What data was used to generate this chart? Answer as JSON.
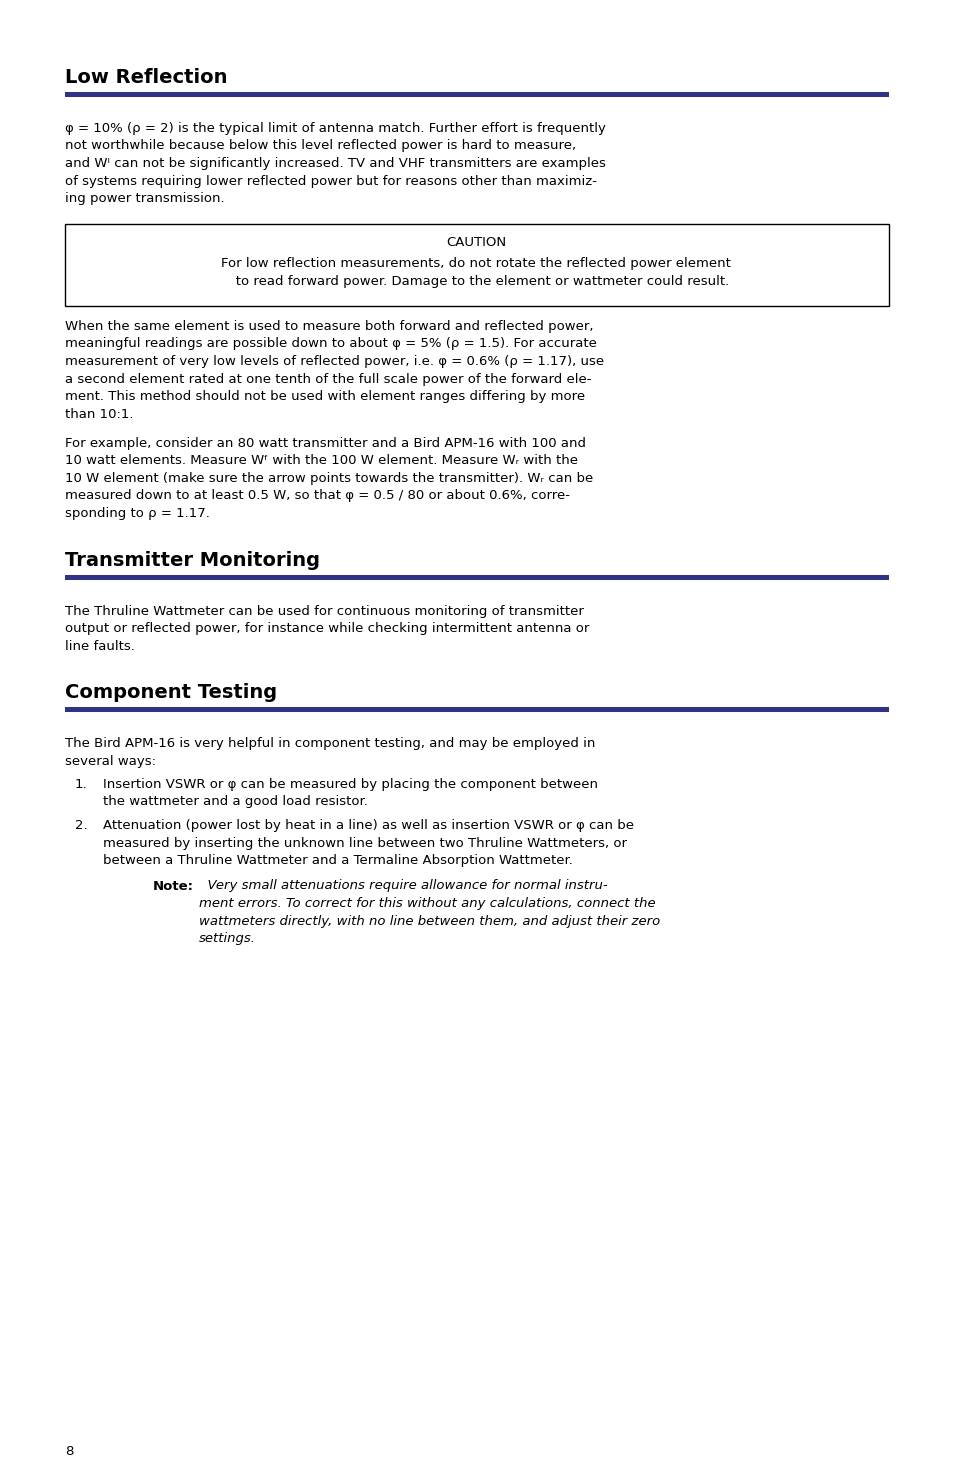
{
  "bg_color": "#ffffff",
  "rule_color": "#2e3190",
  "heading1": "Low Reflection",
  "heading2": "Transmitter Monitoring",
  "heading3": "Component Testing",
  "page_number": "8",
  "para1_line1": "φ = 10% (ρ = 2) is the typical limit of antenna match. Further effort is frequently",
  "para1_line2": "not worthwhile because below this level reflected power is hard to measure,",
  "para1_line3": "and Wᴵ can not be significantly increased. TV and VHF transmitters are examples",
  "para1_line4": "of systems requiring lower reflected power but for reasons other than maximiz-",
  "para1_line5": "ing power transmission.",
  "caution_title": "CAUTION",
  "caution_line1": "For low reflection measurements, do not rotate the reflected power element",
  "caution_line2": "   to read forward power. Damage to the element or wattmeter could result.",
  "para2_line1": "When the same element is used to measure both forward and reflected power,",
  "para2_line2": "meaningful readings are possible down to about φ = 5% (ρ = 1.5). For accurate",
  "para2_line3": "measurement of very low levels of reflected power, i.e. φ = 0.6% (ρ = 1.17), use",
  "para2_line4": "a second element rated at one tenth of the full scale power of the forward ele-",
  "para2_line5": "ment. This method should not be used with element ranges differing by more",
  "para2_line6": "than 10:1.",
  "para3_line1": "For example, consider an 80 watt transmitter and a Bird APM-16 with 100 and",
  "para3_line2": "10 watt elements. Measure Wᶠ with the 100 W element. Measure Wᵣ with the",
  "para3_line3": "10 W element (make sure the arrow points towards the transmitter). Wᵣ can be",
  "para3_line4": "measured down to at least 0.5 W, so that φ = 0.5 / 80 or about 0.6%, corre-",
  "para3_line5": "sponding to ρ = 1.17.",
  "para4_line1": "The Thruline Wattmeter can be used for continuous monitoring of transmitter",
  "para4_line2": "output or reflected power, for instance while checking intermittent antenna or",
  "para4_line3": "line faults.",
  "para5_line1": "The Bird APM-16 is very helpful in component testing, and may be employed in",
  "para5_line2": "several ways:",
  "list1_num": "1.",
  "list1_line1": "Insertion VSWR or φ can be measured by placing the component between",
  "list1_line2": "the wattmeter and a good load resistor.",
  "list2_num": "2.",
  "list2_line1": "Attenuation (power lost by heat in a line) as well as insertion VSWR or φ can be",
  "list2_line2": "measured by inserting the unknown line between two Thruline Wattmeters, or",
  "list2_line3": "between a Thruline Wattmeter and a Termaline Absorption Wattmeter.",
  "note_bold": "Note:",
  "note_italic_line1": "  Very small attenuations require allowance for normal instru-",
  "note_italic_line2": "ment errors. To correct for this without any calculations, connect the",
  "note_italic_line3": "wattmeters directly, with no line between them, and adjust their zero",
  "note_italic_line4": "settings."
}
